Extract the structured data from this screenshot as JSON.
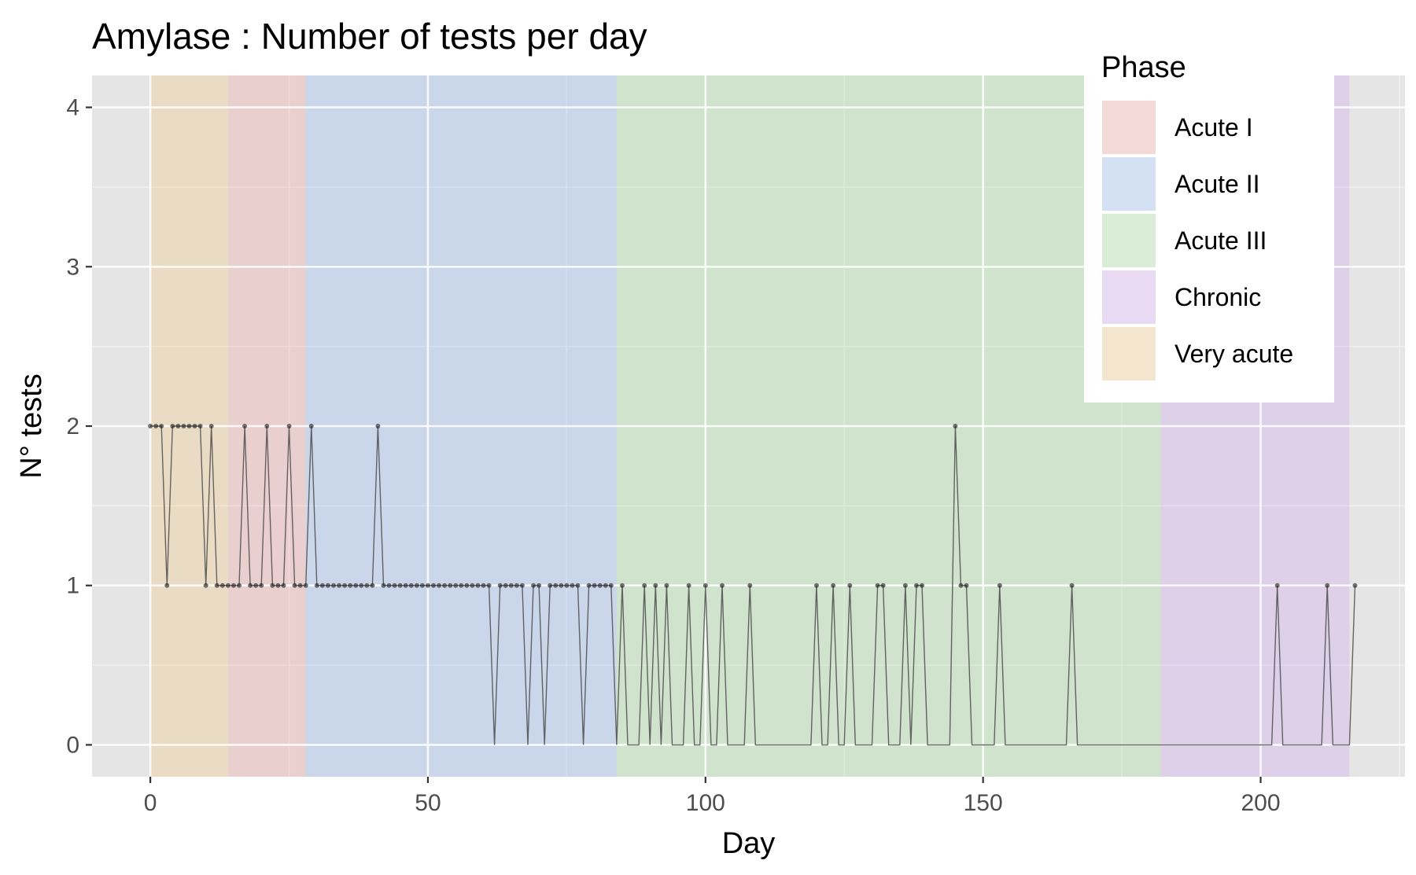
{
  "chart_data": {
    "type": "line",
    "title": "Amylase : Number of tests per day",
    "xlabel": "Day",
    "ylabel": "N° tests",
    "xlim": [
      -10.5,
      226
    ],
    "ylim": [
      -0.2,
      4.2
    ],
    "xticks": [
      0,
      50,
      100,
      150,
      200
    ],
    "yticks": [
      0,
      1,
      2,
      3,
      4
    ],
    "grid": true,
    "legend": {
      "title": "Phase",
      "position": "top-right",
      "entries": [
        {
          "label": "Acute I",
          "color": "#F8766D"
        },
        {
          "label": "Acute II",
          "color": "#619CFF"
        },
        {
          "label": "Acute III",
          "color": "#7CDD6F"
        },
        {
          "label": "Chronic",
          "color": "#C77CFF"
        },
        {
          "label": "Very acute",
          "color": "#FFB347"
        }
      ]
    },
    "phases": [
      {
        "name": "Very acute",
        "start": 0,
        "end": 14,
        "color": "#FFB347"
      },
      {
        "name": "Acute I",
        "start": 14,
        "end": 28,
        "color": "#F8766D"
      },
      {
        "name": "Acute II",
        "start": 28,
        "end": 84,
        "color": "#619CFF"
      },
      {
        "name": "Acute III",
        "start": 84,
        "end": 182,
        "color": "#7CDD6F"
      },
      {
        "name": "Chronic",
        "start": 182,
        "end": 216,
        "color": "#C77CFF"
      }
    ],
    "series": [
      {
        "name": "Amylase",
        "line_color": "#4D4D4D",
        "days": [
          0,
          1,
          2,
          3,
          4,
          5,
          6,
          7,
          8,
          9,
          10,
          11,
          12,
          13,
          14,
          15,
          16,
          17,
          18,
          19,
          20,
          21,
          22,
          23,
          24,
          25,
          26,
          27,
          28,
          29,
          30,
          31,
          32,
          33,
          34,
          35,
          36,
          37,
          38,
          39,
          40,
          41,
          42,
          43,
          44,
          45,
          46,
          47,
          48,
          49,
          50,
          51,
          52,
          53,
          54,
          55,
          56,
          57,
          58,
          59,
          60,
          61,
          62,
          63,
          64,
          65,
          66,
          67,
          68,
          69,
          70,
          71,
          72,
          73,
          74,
          75,
          76,
          77,
          78,
          79,
          80,
          81,
          82,
          83,
          84,
          85,
          86,
          87,
          88,
          89,
          90,
          91,
          92,
          93,
          94,
          95,
          96,
          97,
          98,
          99,
          100,
          101,
          102,
          103,
          104,
          105,
          106,
          107,
          108,
          109,
          110,
          111,
          112,
          113,
          114,
          115,
          116,
          117,
          118,
          119,
          120,
          121,
          122,
          123,
          124,
          125,
          126,
          127,
          128,
          129,
          130,
          131,
          132,
          133,
          134,
          135,
          136,
          137,
          138,
          139,
          140,
          141,
          142,
          143,
          144,
          145,
          146,
          147,
          148,
          149,
          150,
          151,
          152,
          153,
          154,
          155,
          156,
          157,
          158,
          159,
          160,
          161,
          162,
          163,
          164,
          165,
          166,
          167,
          168,
          169,
          170,
          171,
          172,
          173,
          174,
          175,
          176,
          177,
          178,
          179,
          180,
          181,
          182,
          183,
          184,
          185,
          186,
          187,
          188,
          189,
          190,
          191,
          192,
          193,
          194,
          195,
          196,
          197,
          198,
          199,
          200,
          201,
          202,
          203,
          204,
          205,
          206,
          207,
          208,
          209,
          210,
          211,
          212,
          213,
          214,
          215,
          216,
          217
        ],
        "values": [
          2,
          2,
          2,
          1,
          2,
          2,
          2,
          2,
          2,
          2,
          1,
          2,
          1,
          1,
          1,
          1,
          1,
          2,
          1,
          1,
          1,
          2,
          1,
          1,
          1,
          2,
          1,
          1,
          1,
          2,
          1,
          1,
          1,
          1,
          1,
          1,
          1,
          1,
          1,
          1,
          1,
          2,
          1,
          1,
          1,
          1,
          1,
          1,
          1,
          1,
          1,
          1,
          1,
          1,
          1,
          1,
          1,
          1,
          1,
          1,
          1,
          1,
          0,
          1,
          1,
          1,
          1,
          1,
          0,
          1,
          1,
          0,
          1,
          1,
          1,
          1,
          1,
          1,
          0,
          1,
          1,
          1,
          1,
          1,
          0,
          1,
          0,
          0,
          0,
          1,
          0,
          1,
          0,
          1,
          0,
          0,
          0,
          1,
          0,
          0,
          1,
          0,
          0,
          1,
          0,
          0,
          0,
          0,
          1,
          0,
          0,
          0,
          0,
          0,
          0,
          0,
          0,
          0,
          0,
          0,
          1,
          0,
          0,
          1,
          0,
          0,
          1,
          0,
          0,
          0,
          0,
          1,
          1,
          0,
          0,
          0,
          1,
          0,
          1,
          1,
          0,
          0,
          0,
          0,
          0,
          2,
          1,
          1,
          0,
          0,
          0,
          0,
          0,
          1,
          0,
          0,
          0,
          0,
          0,
          0,
          0,
          0,
          0,
          0,
          0,
          0,
          1,
          0,
          0,
          0,
          0,
          0,
          0,
          0,
          0,
          0,
          0,
          0,
          0,
          0,
          0,
          0,
          0,
          0,
          0,
          0,
          0,
          0,
          0,
          0,
          0,
          0,
          0,
          0,
          0,
          0,
          0,
          0,
          0,
          0,
          0,
          0,
          0,
          1,
          0,
          0,
          0,
          0,
          0,
          0,
          0,
          0,
          1,
          0,
          0,
          0,
          0,
          1
        ]
      }
    ]
  }
}
